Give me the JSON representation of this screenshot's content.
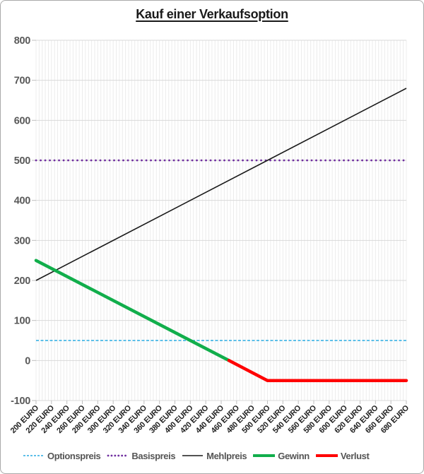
{
  "chart_data": {
    "type": "line",
    "title": "Kauf einer Verkaufsoption",
    "legend_position": "bottom",
    "grid": true,
    "x_axis": {
      "min": 200,
      "max": 680,
      "major_step": 20,
      "minor_gridline_step": 4,
      "tick_values": [
        200,
        220,
        240,
        260,
        280,
        300,
        320,
        340,
        360,
        380,
        400,
        420,
        440,
        460,
        480,
        500,
        520,
        540,
        560,
        580,
        600,
        620,
        640,
        660,
        680
      ],
      "tick_labels": [
        "200 EURO",
        "220 EURO",
        "240 EURO",
        "260 EURO",
        "280 EURO",
        "300 EURO",
        "320 EURO",
        "340 EURO",
        "360 EURO",
        "380 EURO",
        "400 EURO",
        "420 EURO",
        "440 EURO",
        "460 EURO",
        "480 EURO",
        "500 EURO",
        "520 EURO",
        "540 EURO",
        "560 EURO",
        "580 EURO",
        "600 EURO",
        "620 EURO",
        "640 EURO",
        "660 EURO",
        "680 EURO"
      ]
    },
    "y_axis": {
      "min": -100,
      "max": 800,
      "step": 100,
      "tick_labels": [
        "800",
        "700",
        "600",
        "500",
        "400",
        "300",
        "200",
        "100",
        "0",
        "-100"
      ]
    },
    "series": [
      {
        "name": "Optionspreis",
        "color": "#29ABE2",
        "style": "dash",
        "width": 1.4,
        "points": [
          [
            200,
            50
          ],
          [
            680,
            50
          ]
        ]
      },
      {
        "name": "Basispreis",
        "color": "#7030A0",
        "style": "dot",
        "width": 2.8,
        "points": [
          [
            200,
            500
          ],
          [
            680,
            500
          ]
        ]
      },
      {
        "name": "Mehlpreis",
        "color": "#1A1A1A",
        "style": "solid",
        "width": 1.6,
        "points": [
          [
            200,
            200
          ],
          [
            680,
            680
          ]
        ]
      },
      {
        "name": "Gewinn",
        "color": "#11AE4B",
        "style": "solid",
        "width": 4.5,
        "points": [
          [
            200,
            250
          ],
          [
            450,
            0
          ]
        ]
      },
      {
        "name": "Verlust",
        "color": "#FF0000",
        "style": "solid",
        "width": 4.5,
        "points": [
          [
            450,
            0
          ],
          [
            500,
            -50
          ],
          [
            680,
            -50
          ]
        ]
      }
    ],
    "style": {
      "major_gridline_color": "#d9d9d9",
      "minor_gridline_color": "#ececec",
      "tick_color": "#bfbfbf",
      "y_label_color": "#595959",
      "x_label_color": "#1f1f1f"
    }
  }
}
